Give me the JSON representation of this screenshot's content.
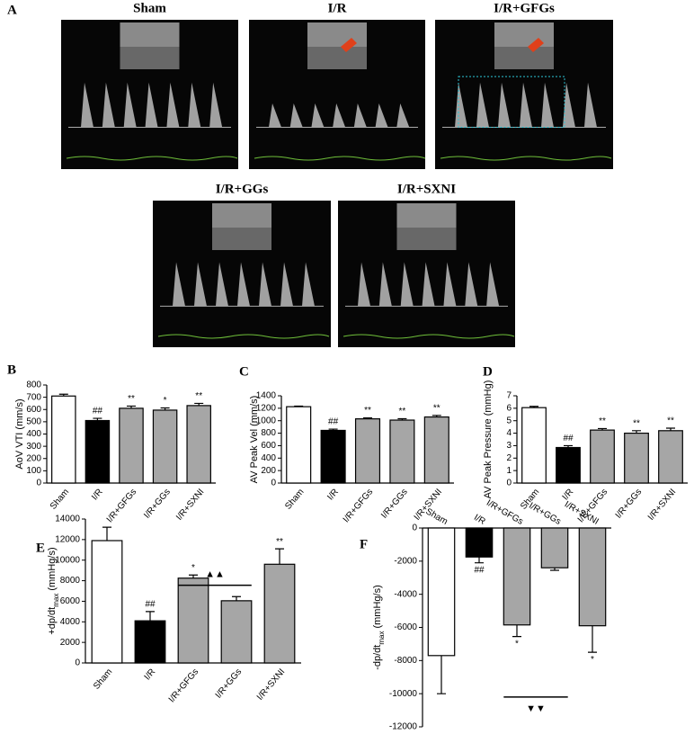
{
  "panel_a": {
    "label": "A",
    "images": [
      "Sham",
      "I/R",
      "I/R+GFGs",
      "I/R+GGs",
      "I/R+SXNI"
    ]
  },
  "chart_data": [
    {
      "type": "bar",
      "label": "B",
      "ylabel": "AoV VTI (mm/s)",
      "categories": [
        "Sham",
        "I/R",
        "I/R+GFGs",
        "I/R+GGs",
        "I/R+SXNI"
      ],
      "values": [
        710,
        510,
        610,
        595,
        632
      ],
      "errors": [
        15,
        18,
        18,
        18,
        18
      ],
      "significance": [
        null,
        "##",
        "**",
        "*",
        "**"
      ],
      "colors": [
        "#ffffff",
        "#000000",
        "#a6a6a6",
        "#a6a6a6",
        "#a6a6a6"
      ],
      "ylim": [
        0,
        800
      ],
      "yticks": [
        0,
        100,
        200,
        300,
        400,
        500,
        600,
        700,
        800
      ]
    },
    {
      "type": "bar",
      "label": "C",
      "ylabel": "AV Peak Vel (mm/s)",
      "categories": [
        "Sham",
        "I/R",
        "I/R+GFGs",
        "I/R+GGs",
        "I/R+SXNI"
      ],
      "values": [
        1225,
        845,
        1030,
        1010,
        1060
      ],
      "errors": [
        10,
        20,
        15,
        22,
        25
      ],
      "significance": [
        null,
        "##",
        "**",
        "**",
        "**"
      ],
      "colors": [
        "#ffffff",
        "#000000",
        "#a6a6a6",
        "#a6a6a6",
        "#a6a6a6"
      ],
      "ylim": [
        0,
        1400
      ],
      "yticks": [
        0,
        200,
        400,
        600,
        800,
        1000,
        1200,
        1400
      ]
    },
    {
      "type": "bar",
      "label": "D",
      "ylabel": "AV Peak Pressure (mmHg)",
      "categories": [
        "Sham",
        "I/R",
        "I/R+GFGs",
        "I/R+GGs",
        "I/R+SXNI"
      ],
      "values": [
        6.05,
        2.85,
        4.25,
        4.0,
        4.2
      ],
      "errors": [
        0.1,
        0.15,
        0.12,
        0.2,
        0.2
      ],
      "significance": [
        null,
        "##",
        "**",
        "**",
        "**"
      ],
      "colors": [
        "#ffffff",
        "#000000",
        "#a6a6a6",
        "#a6a6a6",
        "#a6a6a6"
      ],
      "ylim": [
        0,
        7
      ],
      "yticks": [
        0,
        1,
        2,
        3,
        4,
        5,
        6,
        7
      ]
    },
    {
      "type": "bar",
      "label": "E",
      "ylabel": {
        "main": "+dp/dt",
        "sub": "max",
        "unit": "(mmHg/s)"
      },
      "categories": [
        "Sham",
        "I/R",
        "I/R+GFGs",
        "I/R+GGs",
        "I/R+SXNI"
      ],
      "values": [
        11900,
        4100,
        8250,
        6050,
        9600
      ],
      "errors": [
        1300,
        900,
        300,
        400,
        1500
      ],
      "significance": [
        null,
        "##",
        "*",
        null,
        "**"
      ],
      "comparison_label": "▲▲",
      "colors": [
        "#ffffff",
        "#000000",
        "#a6a6a6",
        "#a6a6a6",
        "#a6a6a6"
      ],
      "ylim": [
        0,
        14000
      ],
      "yticks": [
        0,
        2000,
        4000,
        6000,
        8000,
        10000,
        12000,
        14000
      ]
    },
    {
      "type": "bar",
      "label": "F",
      "ylabel": {
        "main": "-dp/dt",
        "sub": "max",
        "unit": "(mmHg/s)"
      },
      "categories": [
        "Sham",
        "I/R",
        "I/R+GFGs",
        "I/R+GGs",
        "I/R+SXNI"
      ],
      "values": [
        -7700,
        -1750,
        -5850,
        -2400,
        -5900
      ],
      "errors": [
        2300,
        350,
        700,
        150,
        1600
      ],
      "significance": [
        null,
        "##",
        "*",
        null,
        "*"
      ],
      "comparison_label": "▼▼",
      "colors": [
        "#ffffff",
        "#000000",
        "#a6a6a6",
        "#a6a6a6",
        "#a6a6a6"
      ],
      "ylim": [
        -12000,
        0
      ],
      "yticks": [
        -12000,
        -10000,
        -8000,
        -6000,
        -4000,
        -2000,
        0
      ]
    }
  ]
}
